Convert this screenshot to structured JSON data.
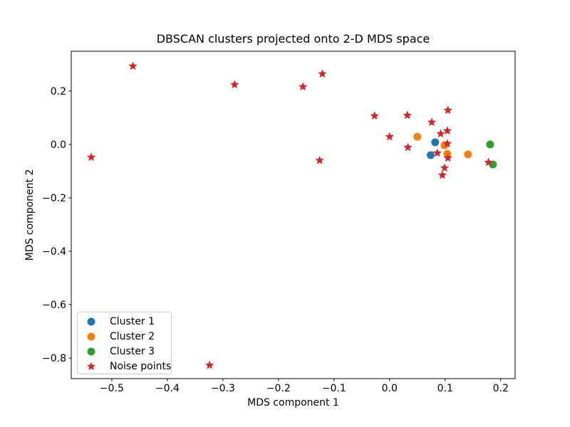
{
  "chart_data": {
    "type": "scatter",
    "title": "DBSCAN clusters projected onto 2-D MDS space",
    "xlabel": "MDS component 1",
    "ylabel": "MDS component 2",
    "xlim": [
      -0.573,
      0.226
    ],
    "ylim": [
      -0.877,
      0.349
    ],
    "x_ticks": [
      -0.5,
      -0.4,
      -0.3,
      -0.2,
      -0.1,
      0.0,
      0.1,
      0.2
    ],
    "x_tick_labels": [
      "−0.5",
      "−0.4",
      "−0.3",
      "−0.2",
      "−0.1",
      "0.0",
      "0.1",
      "0.2"
    ],
    "y_ticks": [
      0.2,
      0.0,
      -0.2,
      -0.4,
      -0.6,
      -0.8
    ],
    "y_tick_labels": [
      "0.2",
      "0.0",
      "−0.2",
      "−0.4",
      "−0.6",
      "−0.8"
    ],
    "grid": false,
    "legend_position": "lower-left",
    "axis_color": "#000000",
    "series": [
      {
        "name": "Cluster 1",
        "marker": "circle",
        "color": "#1f77b4",
        "points": [
          [
            0.082,
            0.008
          ],
          [
            0.074,
            -0.04
          ]
        ]
      },
      {
        "name": "Cluster 2",
        "marker": "circle",
        "color": "#ff7f0e",
        "points": [
          [
            0.05,
            0.029
          ],
          [
            0.099,
            -0.003
          ],
          [
            0.104,
            -0.035
          ],
          [
            0.141,
            -0.037
          ]
        ]
      },
      {
        "name": "Cluster 3",
        "marker": "circle",
        "color": "#2ca02c",
        "points": [
          [
            0.181,
            0.0
          ],
          [
            0.186,
            -0.075
          ]
        ]
      },
      {
        "name": "Noise points",
        "marker": "star",
        "color": "#d62728",
        "points": [
          [
            -0.537,
            -0.048
          ],
          [
            -0.462,
            0.293
          ],
          [
            -0.324,
            -0.827
          ],
          [
            -0.279,
            0.224
          ],
          [
            -0.156,
            0.216
          ],
          [
            -0.121,
            0.264
          ],
          [
            -0.126,
            -0.06
          ],
          [
            -0.027,
            0.107
          ],
          [
            0.0,
            0.029
          ],
          [
            0.032,
            0.109
          ],
          [
            0.033,
            -0.011
          ],
          [
            0.076,
            0.083
          ],
          [
            0.105,
            0.128
          ],
          [
            0.092,
            0.04
          ],
          [
            0.104,
            0.051
          ],
          [
            0.104,
            0.003
          ],
          [
            0.086,
            -0.032
          ],
          [
            0.105,
            -0.051
          ],
          [
            0.099,
            -0.088
          ],
          [
            0.095,
            -0.115
          ],
          [
            0.178,
            -0.067
          ]
        ]
      }
    ]
  }
}
